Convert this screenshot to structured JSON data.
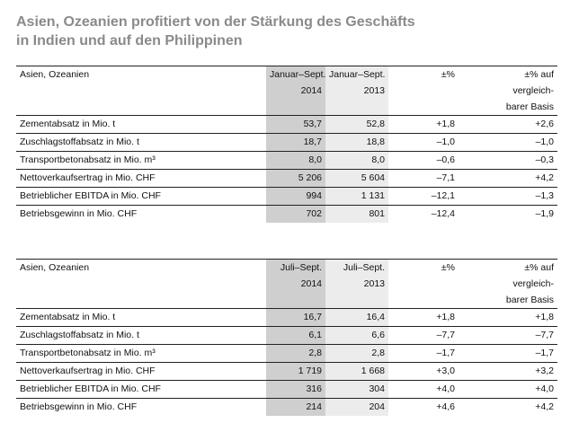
{
  "title_line1": "Asien, Ozeanien profitiert von der Stärkung des Geschäfts",
  "title_line2": "in Indien und auf den Philippinen",
  "tables": [
    {
      "header": {
        "label": "Asien, Ozeanien",
        "cur_l1": "Januar–Sept.",
        "cur_l2": "2014",
        "prev_l1": "Januar–Sept.",
        "prev_l2": "2013",
        "pct": "±%",
        "adj_l1": "±% auf",
        "adj_l2": "vergleich-",
        "adj_l3": "barer Basis"
      },
      "rows": [
        {
          "label": "Zementabsatz in Mio. t",
          "cur": "53,7",
          "prev": "52,8",
          "pct": "+1,8",
          "adj": "+2,6"
        },
        {
          "label": "Zuschlagstoffabsatz in Mio. t",
          "cur": "18,7",
          "prev": "18,8",
          "pct": "–1,0",
          "adj": "–1,0"
        },
        {
          "label": "Transportbetonabsatz in Mio. m³",
          "cur": "8,0",
          "prev": "8,0",
          "pct": "–0,6",
          "adj": "–0,3"
        },
        {
          "label": "Nettoverkaufsertrag in Mio. CHF",
          "cur": "5 206",
          "prev": "5 604",
          "pct": "–7,1",
          "adj": "+4,2"
        },
        {
          "label": "Betrieblicher EBITDA in Mio. CHF",
          "cur": "994",
          "prev": "1 131",
          "pct": "–12,1",
          "adj": "–1,3"
        },
        {
          "label": "Betriebsgewinn in Mio. CHF",
          "cur": "702",
          "prev": "801",
          "pct": "–12,4",
          "adj": "–1,9"
        }
      ]
    },
    {
      "header": {
        "label": "Asien, Ozeanien",
        "cur_l1": "Juli–Sept.",
        "cur_l2": "2014",
        "prev_l1": "Juli–Sept.",
        "prev_l2": "2013",
        "pct": "±%",
        "adj_l1": "±% auf",
        "adj_l2": "vergleich-",
        "adj_l3": "barer Basis"
      },
      "rows": [
        {
          "label": "Zementabsatz in Mio. t",
          "cur": "16,7",
          "prev": "16,4",
          "pct": "+1,8",
          "adj": "+1,8"
        },
        {
          "label": "Zuschlagstoffabsatz in Mio. t",
          "cur": "6,1",
          "prev": "6,6",
          "pct": "–7,7",
          "adj": "–7,7"
        },
        {
          "label": "Transportbetonabsatz in Mio. m³",
          "cur": "2,8",
          "prev": "2,8",
          "pct": "–1,7",
          "adj": "–1,7"
        },
        {
          "label": "Nettoverkaufsertrag in Mio. CHF",
          "cur": "1 719",
          "prev": "1 668",
          "pct": "+3,0",
          "adj": "+3,2"
        },
        {
          "label": "Betrieblicher EBITDA in Mio. CHF",
          "cur": "316",
          "prev": "304",
          "pct": "+4,0",
          "adj": "+4,0"
        },
        {
          "label": "Betriebsgewinn in Mio. CHF",
          "cur": "214",
          "prev": "204",
          "pct": "+4,6",
          "adj": "+4,2"
        }
      ]
    }
  ]
}
